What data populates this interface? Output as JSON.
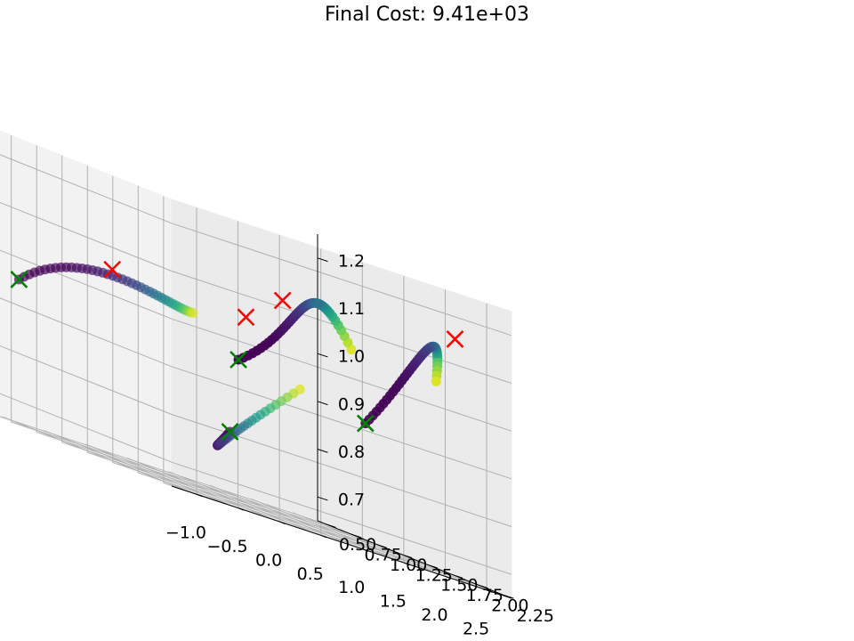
{
  "chart_data": {
    "type": "scatter3d",
    "title": "Final Cost: 9.41e+03",
    "xlabel": "",
    "ylabel": "",
    "zlabel": "",
    "xlim": [
      -1.3,
      2.8
    ],
    "ylim": [
      0.42,
      2.33
    ],
    "zlim": [
      0.65,
      1.25
    ],
    "grid": true,
    "colormap": "viridis",
    "x_ticks": [
      -1.0,
      -0.5,
      0.0,
      0.5,
      1.0,
      1.5,
      2.0,
      2.5
    ],
    "x_tick_labels": [
      "−1.0",
      "−0.5",
      "0.0",
      "0.5",
      "1.0",
      "1.5",
      "2.0",
      "2.5"
    ],
    "y_ticks": [
      0.5,
      0.75,
      1.0,
      1.25,
      1.5,
      1.75,
      2.0,
      2.25
    ],
    "y_tick_labels": [
      "0.50",
      "0.75",
      "1.00",
      "1.25",
      "1.50",
      "1.75",
      "2.00",
      "2.25"
    ],
    "z_ticks": [
      0.7,
      0.8,
      0.9,
      1.0,
      1.1,
      1.2
    ],
    "z_tick_labels": [
      "0.7",
      "0.8",
      "0.9",
      "1.0",
      "1.1",
      "1.2"
    ],
    "start_marker_color": "#008000",
    "goal_marker_color": "#ff0000",
    "series": [
      {
        "start": [
          -0.9,
          0.5,
          0.95
        ],
        "waypoints": [
          [
            -0.2,
            0.6,
            1.08
          ],
          [
            0.6,
            0.75,
            1.0
          ],
          [
            1.2,
            0.5,
            1.0
          ]
        ],
        "goal": [
          -1.0,
          1.5,
          1.05
        ]
      },
      {
        "start": [
          0.4,
          1.6,
          0.95
        ],
        "waypoints": [
          [
            1.1,
            1.7,
            1.05
          ],
          [
            1.3,
            1.5,
            1.22
          ],
          [
            1.7,
            1.65,
            1.05
          ]
        ],
        "goal": [
          0.0,
          2.0,
          1.05
        ]
      },
      {
        "start": [
          1.4,
          0.7,
          0.78
        ],
        "waypoints": [
          [
            1.6,
            0.3,
            0.7
          ],
          [
            1.9,
            0.1,
            0.73
          ],
          [
            2.0,
            0.9,
            0.92
          ]
        ],
        "goal": [
          1.3,
          1.3,
          1.1
        ]
      },
      {
        "start": [
          2.3,
          1.3,
          0.9
        ],
        "waypoints": [
          [
            2.3,
            1.8,
            1.05
          ],
          [
            1.9,
            2.4,
            1.22
          ],
          [
            2.05,
            2.2,
            1.05
          ]
        ],
        "goal": [
          2.4,
          2.1,
          1.15
        ]
      }
    ]
  }
}
